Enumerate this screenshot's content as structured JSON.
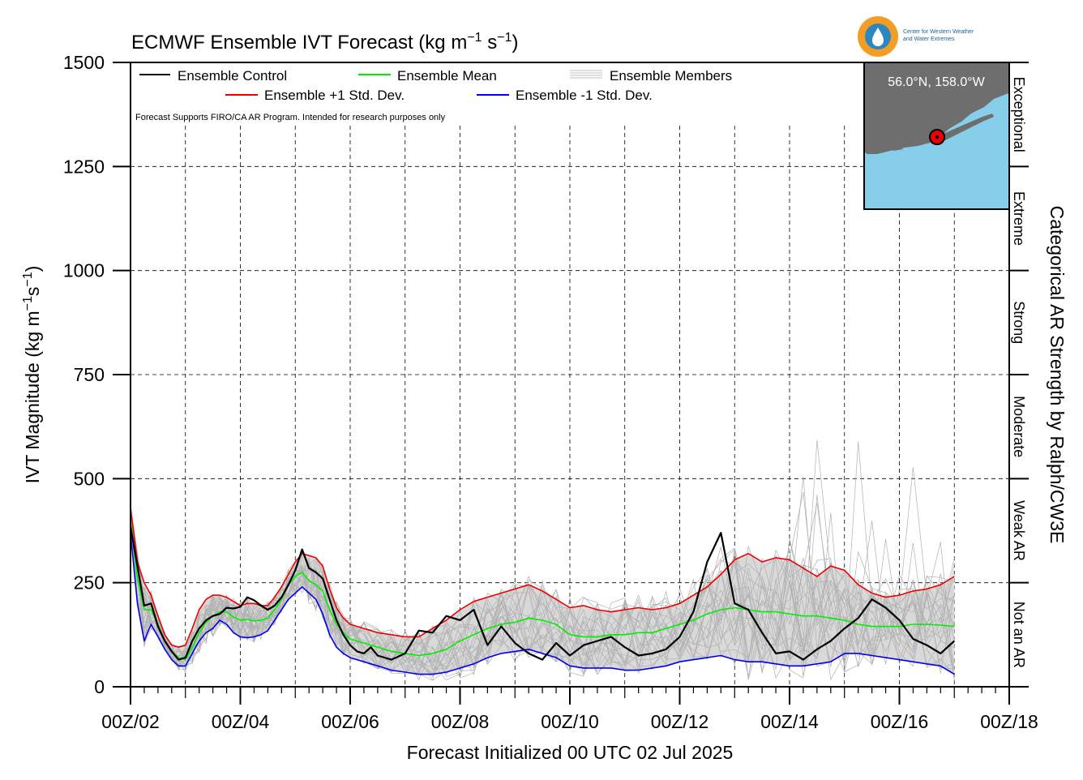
{
  "chart_data": {
    "type": "line",
    "title_main": "ECMWF Ensemble IVT Forecast (kg m",
    "title_exp1": "−1",
    "title_mid": " s",
    "title_exp2": "−1",
    "title_end": ")",
    "ylabel_main": "IVT Magnitude (kg m",
    "ylabel_exp1": "−1",
    "ylabel_mid": "s",
    "ylabel_exp2": "−1",
    "ylabel_end": ")",
    "xlabel": "Forecast Initialized 00 UTC 02 Jul 2025",
    "right_label": "Categorical AR Strength by Ralph/CW3E",
    "note": "Forecast Supports FIRO/CA AR Program. Intended for research purposes only",
    "location": "56.0°N, 158.0°W",
    "logo_text_line1": "Center for Western Weather",
    "logo_text_line2": "and Water Extremes",
    "ylim": [
      0,
      1500
    ],
    "xlim": [
      2,
      18
    ],
    "x_ticks": [
      2,
      4,
      6,
      8,
      10,
      12,
      14,
      16,
      18
    ],
    "x_tick_labels": [
      "00Z/02",
      "00Z/04",
      "00Z/06",
      "00Z/08",
      "00Z/10",
      "00Z/12",
      "00Z/14",
      "00Z/16",
      "00Z/18"
    ],
    "y_ticks": [
      0,
      250,
      500,
      750,
      1000,
      1250,
      1500
    ],
    "y_tick_labels": [
      "0",
      "250",
      "500",
      "750",
      "1000",
      "1250",
      "1500"
    ],
    "grid": true,
    "legend_position": "top-left",
    "categories_ar": [
      {
        "label": "Not an AR",
        "range": [
          0,
          250
        ]
      },
      {
        "label": "Weak AR",
        "range": [
          250,
          500
        ]
      },
      {
        "label": "Moderate",
        "range": [
          500,
          750
        ]
      },
      {
        "label": "Strong",
        "range": [
          750,
          1000
        ]
      },
      {
        "label": "Extreme",
        "range": [
          1000,
          1250
        ]
      },
      {
        "label": "Exceptional",
        "range": [
          1250,
          1500
        ]
      }
    ],
    "legend": [
      {
        "name": "Ensemble Control",
        "color": "#000000"
      },
      {
        "name": "Ensemble Mean",
        "color": "#00ee00"
      },
      {
        "name": "Ensemble Members",
        "color": "#aaaaaa"
      },
      {
        "name": "Ensemble +1 Std. Dev.",
        "color": "#ee0000"
      },
      {
        "name": "Ensemble -1 Std. Dev.",
        "color": "#0000ee"
      }
    ],
    "series": [
      {
        "name": "Ensemble Control",
        "color": "#000000",
        "x": [
          2.0,
          2.125,
          2.25,
          2.375,
          2.5,
          2.625,
          2.75,
          2.875,
          3.0,
          3.125,
          3.25,
          3.375,
          3.5,
          3.625,
          3.75,
          3.875,
          4.0,
          4.125,
          4.25,
          4.375,
          4.5,
          4.625,
          4.75,
          4.875,
          5.0,
          5.125,
          5.25,
          5.375,
          5.5,
          5.625,
          5.75,
          5.875,
          6.0,
          6.125,
          6.25,
          6.375,
          6.5,
          6.75,
          7.0,
          7.25,
          7.5,
          7.75,
          8.0,
          8.25,
          8.5,
          8.75,
          9.0,
          9.25,
          9.5,
          9.75,
          10.0,
          10.25,
          10.5,
          10.75,
          11.0,
          11.25,
          11.5,
          11.75,
          12.0,
          12.25,
          12.5,
          12.75,
          13.0,
          13.25,
          13.5,
          13.75,
          14.0,
          14.25,
          14.5,
          14.75,
          15.0,
          15.25,
          15.5,
          15.75,
          16.0,
          16.25,
          16.5,
          16.75,
          17.0
        ],
        "values": [
          385,
          290,
          195,
          200,
          145,
          110,
          85,
          65,
          70,
          110,
          140,
          160,
          170,
          175,
          190,
          188,
          192,
          215,
          208,
          195,
          185,
          195,
          215,
          245,
          280,
          330,
          285,
          275,
          260,
          210,
          160,
          125,
          100,
          85,
          80,
          95,
          75,
          65,
          80,
          135,
          130,
          170,
          160,
          185,
          100,
          145,
          105,
          80,
          65,
          105,
          75,
          100,
          110,
          120,
          95,
          75,
          80,
          90,
          120,
          180,
          300,
          370,
          200,
          185,
          130,
          80,
          85,
          65,
          90,
          110,
          140,
          165,
          210,
          190,
          160,
          115,
          100,
          80,
          110
        ]
      },
      {
        "name": "Ensemble Mean",
        "color": "#00ee00",
        "x": [
          2.0,
          2.125,
          2.25,
          2.375,
          2.5,
          2.625,
          2.75,
          2.875,
          3.0,
          3.125,
          3.25,
          3.375,
          3.5,
          3.625,
          3.75,
          3.875,
          4.0,
          4.125,
          4.25,
          4.375,
          4.5,
          4.625,
          4.75,
          4.875,
          5.0,
          5.125,
          5.25,
          5.375,
          5.5,
          5.625,
          5.75,
          5.875,
          6.0,
          6.25,
          6.5,
          6.75,
          7.0,
          7.25,
          7.5,
          7.75,
          8.0,
          8.25,
          8.5,
          8.75,
          9.0,
          9.25,
          9.5,
          9.75,
          10.0,
          10.25,
          10.5,
          10.75,
          11.0,
          11.25,
          11.5,
          11.75,
          12.0,
          12.25,
          12.5,
          12.75,
          13.0,
          13.25,
          13.5,
          13.75,
          14.0,
          14.25,
          14.5,
          14.75,
          15.0,
          15.25,
          15.5,
          15.75,
          16.0,
          16.25,
          16.5,
          16.75,
          17.0
        ],
        "values": [
          400,
          260,
          185,
          185,
          150,
          110,
          85,
          70,
          65,
          95,
          130,
          155,
          170,
          180,
          180,
          168,
          160,
          162,
          158,
          160,
          165,
          185,
          210,
          245,
          265,
          275,
          255,
          245,
          230,
          185,
          150,
          130,
          115,
          105,
          95,
          85,
          80,
          75,
          80,
          90,
          110,
          125,
          140,
          150,
          155,
          165,
          160,
          150,
          125,
          120,
          120,
          125,
          125,
          130,
          130,
          140,
          150,
          160,
          175,
          185,
          190,
          185,
          180,
          180,
          175,
          170,
          170,
          165,
          160,
          150,
          145,
          145,
          145,
          150,
          150,
          148,
          145
        ]
      },
      {
        "name": "Ensemble +1 Std. Dev.",
        "color": "#ee0000",
        "x": [
          2.0,
          2.125,
          2.25,
          2.375,
          2.5,
          2.625,
          2.75,
          2.875,
          3.0,
          3.125,
          3.25,
          3.375,
          3.5,
          3.625,
          3.75,
          3.875,
          4.0,
          4.125,
          4.25,
          4.375,
          4.5,
          4.625,
          4.75,
          4.875,
          5.0,
          5.125,
          5.25,
          5.375,
          5.5,
          5.625,
          5.75,
          5.875,
          6.0,
          6.25,
          6.5,
          6.75,
          7.0,
          7.25,
          7.5,
          7.75,
          8.0,
          8.25,
          8.5,
          8.75,
          9.0,
          9.25,
          9.5,
          9.75,
          10.0,
          10.25,
          10.5,
          10.75,
          11.0,
          11.25,
          11.5,
          11.75,
          12.0,
          12.25,
          12.5,
          12.75,
          13.0,
          13.25,
          13.5,
          13.75,
          14.0,
          14.25,
          14.5,
          14.75,
          15.0,
          15.25,
          15.5,
          15.75,
          16.0,
          16.25,
          16.5,
          16.75,
          17.0
        ],
        "values": [
          430,
          300,
          250,
          220,
          170,
          125,
          100,
          95,
          100,
          140,
          185,
          210,
          220,
          220,
          215,
          205,
          195,
          200,
          200,
          195,
          195,
          215,
          240,
          270,
          300,
          320,
          315,
          310,
          290,
          235,
          190,
          165,
          150,
          140,
          130,
          125,
          120,
          120,
          140,
          160,
          185,
          205,
          215,
          225,
          235,
          245,
          230,
          210,
          190,
          195,
          185,
          180,
          185,
          190,
          185,
          190,
          200,
          220,
          240,
          270,
          305,
          320,
          300,
          310,
          305,
          285,
          265,
          290,
          280,
          245,
          225,
          215,
          220,
          230,
          235,
          245,
          265
        ]
      },
      {
        "name": "Ensemble -1 Std. Dev.",
        "color": "#0000ee",
        "x": [
          2.0,
          2.125,
          2.25,
          2.375,
          2.5,
          2.625,
          2.75,
          2.875,
          3.0,
          3.125,
          3.25,
          3.375,
          3.5,
          3.625,
          3.75,
          3.875,
          4.0,
          4.125,
          4.25,
          4.375,
          4.5,
          4.625,
          4.75,
          4.875,
          5.0,
          5.125,
          5.25,
          5.375,
          5.5,
          5.625,
          5.75,
          5.875,
          6.0,
          6.25,
          6.5,
          6.75,
          7.0,
          7.25,
          7.5,
          7.75,
          8.0,
          8.25,
          8.5,
          8.75,
          9.0,
          9.25,
          9.5,
          9.75,
          10.0,
          10.25,
          10.5,
          10.75,
          11.0,
          11.25,
          11.5,
          11.75,
          12.0,
          12.25,
          12.5,
          12.75,
          13.0,
          13.25,
          13.5,
          13.75,
          14.0,
          14.25,
          14.5,
          14.75,
          15.0,
          15.25,
          15.5,
          15.75,
          16.0,
          16.25,
          16.5,
          16.75,
          17.0
        ],
        "values": [
          370,
          200,
          110,
          150,
          120,
          90,
          65,
          50,
          50,
          80,
          110,
          130,
          140,
          160,
          150,
          130,
          120,
          118,
          120,
          125,
          135,
          160,
          185,
          210,
          225,
          240,
          225,
          210,
          175,
          125,
          95,
          80,
          70,
          60,
          50,
          40,
          35,
          30,
          30,
          35,
          45,
          55,
          70,
          80,
          85,
          90,
          80,
          70,
          50,
          45,
          45,
          45,
          40,
          40,
          45,
          50,
          60,
          65,
          70,
          75,
          65,
          60,
          60,
          55,
          50,
          50,
          55,
          60,
          80,
          80,
          75,
          70,
          65,
          60,
          55,
          50,
          30
        ]
      }
    ]
  }
}
